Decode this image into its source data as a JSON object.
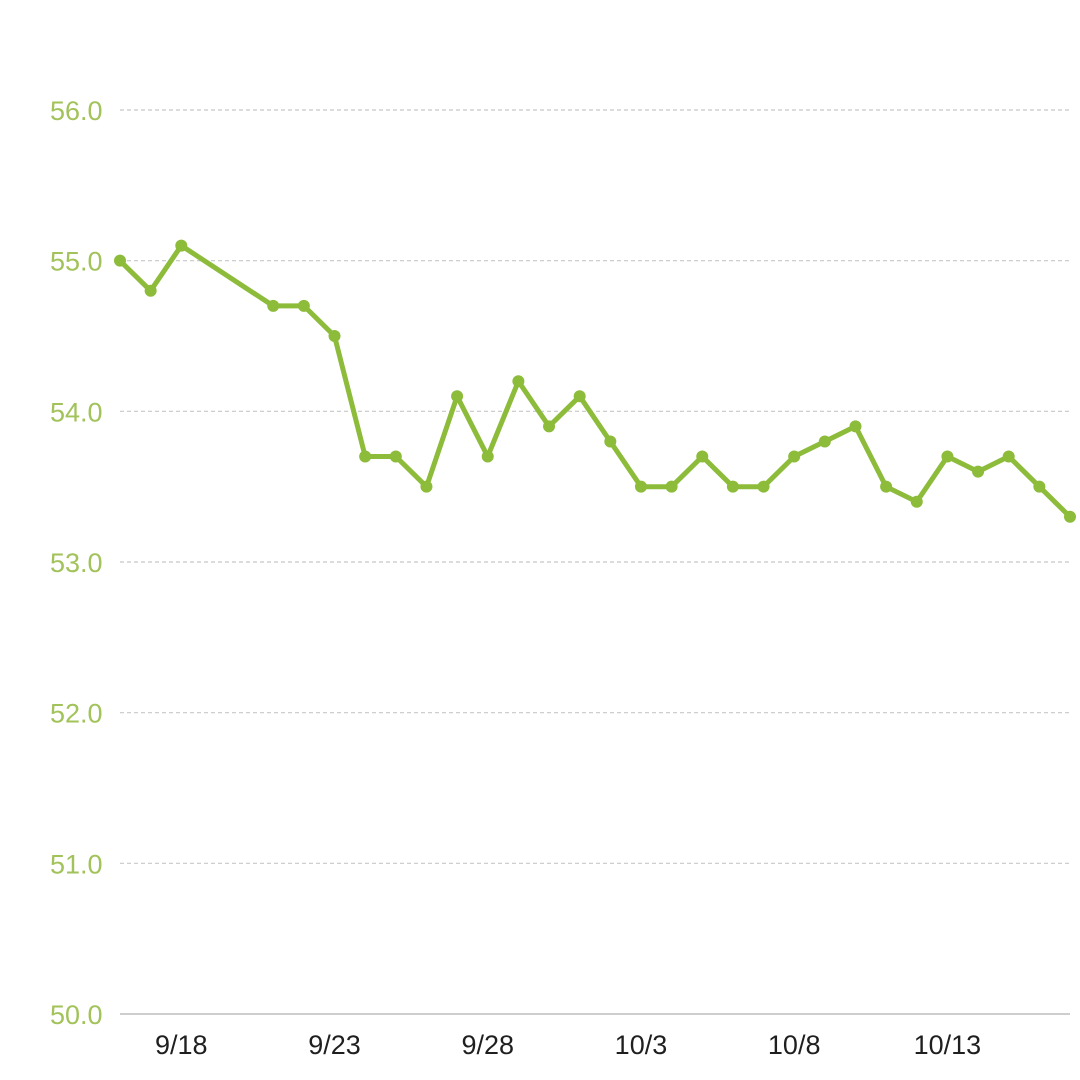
{
  "chart_data": {
    "type": "line",
    "title": "",
    "xlabel": "",
    "ylabel": "",
    "ylim": [
      50.0,
      56.0
    ],
    "yticks": [
      "50.0",
      "51.0",
      "52.0",
      "53.0",
      "54.0",
      "55.0",
      "56.0"
    ],
    "xticks": [
      "9/18",
      "9/23",
      "9/28",
      "10/3",
      "10/8",
      "10/13"
    ],
    "grid": true,
    "colors": {
      "line": "#8dbb3a",
      "ytick": "#a2c25a",
      "grid": "#c8c8c8",
      "axis": "#bdbdbd",
      "xtick": "#1f1f1f"
    },
    "series": [
      {
        "points": [
          {
            "x": "9/16",
            "y": 55.0
          },
          {
            "x": "9/17",
            "y": 54.8
          },
          {
            "x": "9/18",
            "y": 55.1
          },
          {
            "x": "9/21",
            "y": 54.7
          },
          {
            "x": "9/22",
            "y": 54.7
          },
          {
            "x": "9/23",
            "y": 54.5
          },
          {
            "x": "9/24",
            "y": 53.7
          },
          {
            "x": "9/25",
            "y": 53.7
          },
          {
            "x": "9/26",
            "y": 53.5
          },
          {
            "x": "9/27",
            "y": 54.1
          },
          {
            "x": "9/28",
            "y": 53.7
          },
          {
            "x": "9/29",
            "y": 54.2
          },
          {
            "x": "9/30",
            "y": 53.9
          },
          {
            "x": "10/1",
            "y": 54.1
          },
          {
            "x": "10/2",
            "y": 53.8
          },
          {
            "x": "10/3",
            "y": 53.5
          },
          {
            "x": "10/4",
            "y": 53.5
          },
          {
            "x": "10/5",
            "y": 53.7
          },
          {
            "x": "10/6",
            "y": 53.5
          },
          {
            "x": "10/7",
            "y": 53.5
          },
          {
            "x": "10/8",
            "y": 53.7
          },
          {
            "x": "10/9",
            "y": 53.8
          },
          {
            "x": "10/10",
            "y": 53.9
          },
          {
            "x": "10/11",
            "y": 53.5
          },
          {
            "x": "10/12",
            "y": 53.4
          },
          {
            "x": "10/13",
            "y": 53.7
          },
          {
            "x": "10/14",
            "y": 53.6
          },
          {
            "x": "10/15",
            "y": 53.7
          },
          {
            "x": "10/16",
            "y": 53.5
          },
          {
            "x": "10/17",
            "y": 53.3
          }
        ]
      }
    ]
  }
}
